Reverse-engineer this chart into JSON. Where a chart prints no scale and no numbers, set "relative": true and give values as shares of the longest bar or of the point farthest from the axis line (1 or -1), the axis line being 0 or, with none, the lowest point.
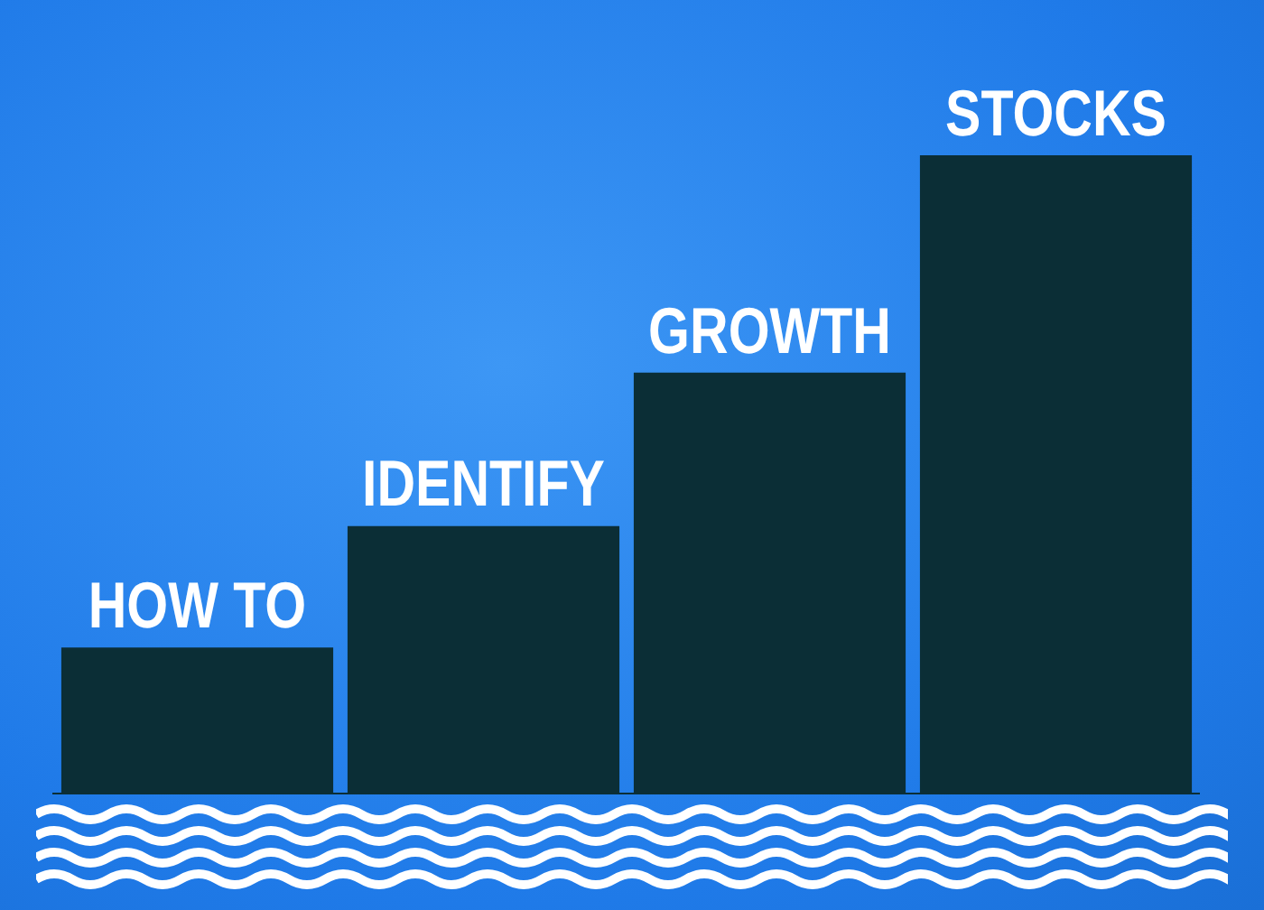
{
  "chart_data": {
    "type": "bar",
    "relative": true,
    "categories": [
      "HOW TO",
      "IDENTIFY",
      "GROWTH",
      "STOCKS"
    ],
    "values": [
      0.23,
      0.42,
      0.66,
      1
    ],
    "color": "#0b2e36",
    "legend": false
  }
}
